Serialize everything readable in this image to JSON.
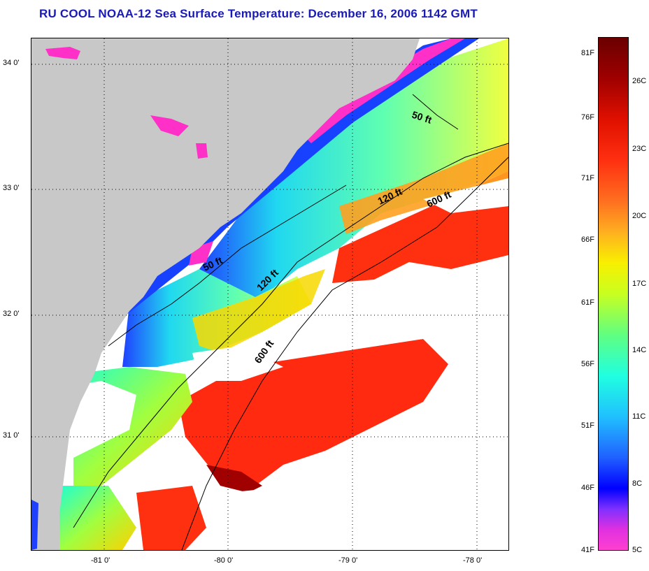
{
  "title": "RU COOL  NOAA-12  Sea Surface Temperature:  December 16, 2006 1142 GMT",
  "axes": {
    "lat_labels": [
      "34 0'",
      "33 0'",
      "32 0'",
      "31 0'"
    ],
    "lon_labels": [
      "-81 0'",
      "-80 0'",
      "-79 0'",
      "-78 0'"
    ]
  },
  "depth_contours": {
    "labels": [
      "50 ft",
      "120 ft",
      "600 ft",
      "50 ft",
      "120 ft",
      "600 ft"
    ]
  },
  "colorbar": {
    "fahrenheit": [
      "81F",
      "76F",
      "71F",
      "66F",
      "61F",
      "56F",
      "51F",
      "46F",
      "41F"
    ],
    "celsius": [
      "26C",
      "23C",
      "20C",
      "17C",
      "14C",
      "11C",
      "8C",
      "5C"
    ]
  },
  "colors": {
    "title": "#1a1ab8",
    "land": "#c8c8c8",
    "cloud": "#ffffff"
  }
}
